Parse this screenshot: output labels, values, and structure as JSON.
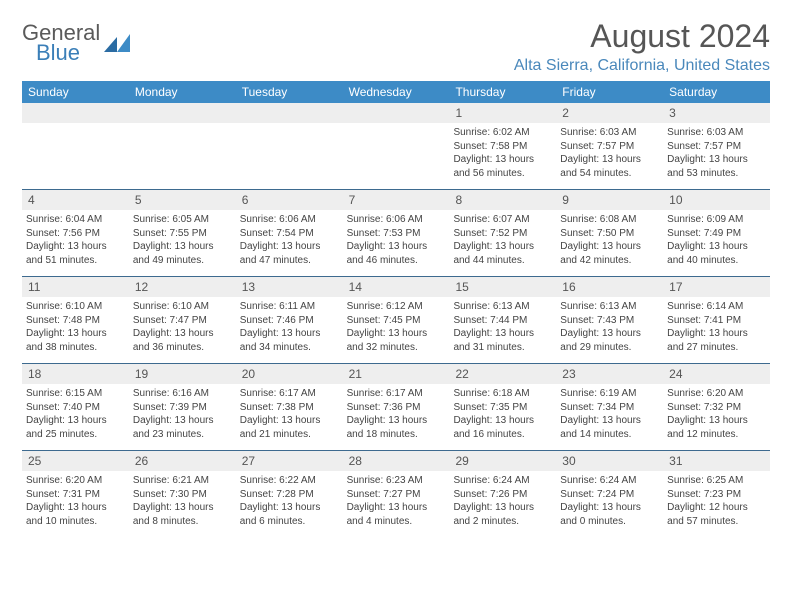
{
  "logo": {
    "word1": "General",
    "word2": "Blue"
  },
  "title": "August 2024",
  "location": "Alta Sierra, California, United States",
  "colors": {
    "header_bg": "#3d8bc6",
    "header_text": "#ffffff",
    "location_text": "#4a88bb",
    "title_text": "#565656",
    "daynum_bg": "#eeeeee",
    "week_border": "#3d6a8f",
    "body_text": "#444444",
    "logo_gray": "#5a5a5a",
    "logo_blue": "#3b7fb8"
  },
  "day_names": [
    "Sunday",
    "Monday",
    "Tuesday",
    "Wednesday",
    "Thursday",
    "Friday",
    "Saturday"
  ],
  "weeks": [
    [
      {
        "blank": true
      },
      {
        "blank": true
      },
      {
        "blank": true
      },
      {
        "blank": true
      },
      {
        "n": "1",
        "sr": "Sunrise: 6:02 AM",
        "ss": "Sunset: 7:58 PM",
        "d1": "Daylight: 13 hours",
        "d2": "and 56 minutes."
      },
      {
        "n": "2",
        "sr": "Sunrise: 6:03 AM",
        "ss": "Sunset: 7:57 PM",
        "d1": "Daylight: 13 hours",
        "d2": "and 54 minutes."
      },
      {
        "n": "3",
        "sr": "Sunrise: 6:03 AM",
        "ss": "Sunset: 7:57 PM",
        "d1": "Daylight: 13 hours",
        "d2": "and 53 minutes."
      }
    ],
    [
      {
        "n": "4",
        "sr": "Sunrise: 6:04 AM",
        "ss": "Sunset: 7:56 PM",
        "d1": "Daylight: 13 hours",
        "d2": "and 51 minutes."
      },
      {
        "n": "5",
        "sr": "Sunrise: 6:05 AM",
        "ss": "Sunset: 7:55 PM",
        "d1": "Daylight: 13 hours",
        "d2": "and 49 minutes."
      },
      {
        "n": "6",
        "sr": "Sunrise: 6:06 AM",
        "ss": "Sunset: 7:54 PM",
        "d1": "Daylight: 13 hours",
        "d2": "and 47 minutes."
      },
      {
        "n": "7",
        "sr": "Sunrise: 6:06 AM",
        "ss": "Sunset: 7:53 PM",
        "d1": "Daylight: 13 hours",
        "d2": "and 46 minutes."
      },
      {
        "n": "8",
        "sr": "Sunrise: 6:07 AM",
        "ss": "Sunset: 7:52 PM",
        "d1": "Daylight: 13 hours",
        "d2": "and 44 minutes."
      },
      {
        "n": "9",
        "sr": "Sunrise: 6:08 AM",
        "ss": "Sunset: 7:50 PM",
        "d1": "Daylight: 13 hours",
        "d2": "and 42 minutes."
      },
      {
        "n": "10",
        "sr": "Sunrise: 6:09 AM",
        "ss": "Sunset: 7:49 PM",
        "d1": "Daylight: 13 hours",
        "d2": "and 40 minutes."
      }
    ],
    [
      {
        "n": "11",
        "sr": "Sunrise: 6:10 AM",
        "ss": "Sunset: 7:48 PM",
        "d1": "Daylight: 13 hours",
        "d2": "and 38 minutes."
      },
      {
        "n": "12",
        "sr": "Sunrise: 6:10 AM",
        "ss": "Sunset: 7:47 PM",
        "d1": "Daylight: 13 hours",
        "d2": "and 36 minutes."
      },
      {
        "n": "13",
        "sr": "Sunrise: 6:11 AM",
        "ss": "Sunset: 7:46 PM",
        "d1": "Daylight: 13 hours",
        "d2": "and 34 minutes."
      },
      {
        "n": "14",
        "sr": "Sunrise: 6:12 AM",
        "ss": "Sunset: 7:45 PM",
        "d1": "Daylight: 13 hours",
        "d2": "and 32 minutes."
      },
      {
        "n": "15",
        "sr": "Sunrise: 6:13 AM",
        "ss": "Sunset: 7:44 PM",
        "d1": "Daylight: 13 hours",
        "d2": "and 31 minutes."
      },
      {
        "n": "16",
        "sr": "Sunrise: 6:13 AM",
        "ss": "Sunset: 7:43 PM",
        "d1": "Daylight: 13 hours",
        "d2": "and 29 minutes."
      },
      {
        "n": "17",
        "sr": "Sunrise: 6:14 AM",
        "ss": "Sunset: 7:41 PM",
        "d1": "Daylight: 13 hours",
        "d2": "and 27 minutes."
      }
    ],
    [
      {
        "n": "18",
        "sr": "Sunrise: 6:15 AM",
        "ss": "Sunset: 7:40 PM",
        "d1": "Daylight: 13 hours",
        "d2": "and 25 minutes."
      },
      {
        "n": "19",
        "sr": "Sunrise: 6:16 AM",
        "ss": "Sunset: 7:39 PM",
        "d1": "Daylight: 13 hours",
        "d2": "and 23 minutes."
      },
      {
        "n": "20",
        "sr": "Sunrise: 6:17 AM",
        "ss": "Sunset: 7:38 PM",
        "d1": "Daylight: 13 hours",
        "d2": "and 21 minutes."
      },
      {
        "n": "21",
        "sr": "Sunrise: 6:17 AM",
        "ss": "Sunset: 7:36 PM",
        "d1": "Daylight: 13 hours",
        "d2": "and 18 minutes."
      },
      {
        "n": "22",
        "sr": "Sunrise: 6:18 AM",
        "ss": "Sunset: 7:35 PM",
        "d1": "Daylight: 13 hours",
        "d2": "and 16 minutes."
      },
      {
        "n": "23",
        "sr": "Sunrise: 6:19 AM",
        "ss": "Sunset: 7:34 PM",
        "d1": "Daylight: 13 hours",
        "d2": "and 14 minutes."
      },
      {
        "n": "24",
        "sr": "Sunrise: 6:20 AM",
        "ss": "Sunset: 7:32 PM",
        "d1": "Daylight: 13 hours",
        "d2": "and 12 minutes."
      }
    ],
    [
      {
        "n": "25",
        "sr": "Sunrise: 6:20 AM",
        "ss": "Sunset: 7:31 PM",
        "d1": "Daylight: 13 hours",
        "d2": "and 10 minutes."
      },
      {
        "n": "26",
        "sr": "Sunrise: 6:21 AM",
        "ss": "Sunset: 7:30 PM",
        "d1": "Daylight: 13 hours",
        "d2": "and 8 minutes."
      },
      {
        "n": "27",
        "sr": "Sunrise: 6:22 AM",
        "ss": "Sunset: 7:28 PM",
        "d1": "Daylight: 13 hours",
        "d2": "and 6 minutes."
      },
      {
        "n": "28",
        "sr": "Sunrise: 6:23 AM",
        "ss": "Sunset: 7:27 PM",
        "d1": "Daylight: 13 hours",
        "d2": "and 4 minutes."
      },
      {
        "n": "29",
        "sr": "Sunrise: 6:24 AM",
        "ss": "Sunset: 7:26 PM",
        "d1": "Daylight: 13 hours",
        "d2": "and 2 minutes."
      },
      {
        "n": "30",
        "sr": "Sunrise: 6:24 AM",
        "ss": "Sunset: 7:24 PM",
        "d1": "Daylight: 13 hours",
        "d2": "and 0 minutes."
      },
      {
        "n": "31",
        "sr": "Sunrise: 6:25 AM",
        "ss": "Sunset: 7:23 PM",
        "d1": "Daylight: 12 hours",
        "d2": "and 57 minutes."
      }
    ]
  ]
}
